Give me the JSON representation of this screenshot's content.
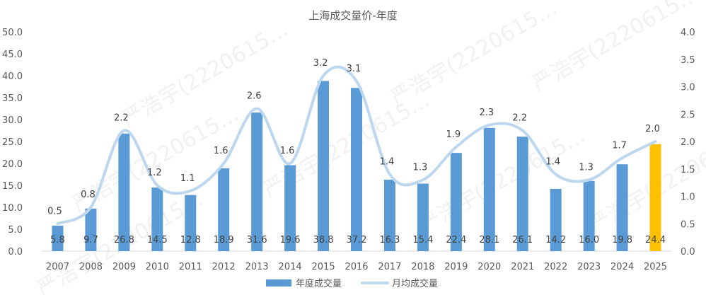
{
  "chart_data": {
    "type": "bar",
    "title": "上海成交量价-年度",
    "categories": [
      "2007",
      "2008",
      "2009",
      "2010",
      "2011",
      "2012",
      "2013",
      "2014",
      "2015",
      "2016",
      "2017",
      "2018",
      "2019",
      "2020",
      "2021",
      "2022",
      "2023",
      "2024",
      "2025"
    ],
    "series": [
      {
        "name": "年度成交量",
        "type": "bar",
        "axis": "left",
        "values": [
          5.8,
          9.7,
          26.8,
          14.5,
          12.8,
          18.9,
          31.6,
          19.6,
          38.8,
          37.2,
          16.3,
          15.4,
          22.4,
          28.1,
          26.1,
          14.2,
          16.0,
          19.8,
          24.4
        ],
        "color": "#5B9BD5",
        "highlight_color": "#FFC000",
        "highlight_index": 18
      },
      {
        "name": "月均成交量",
        "type": "line",
        "axis": "right",
        "values": [
          0.5,
          0.8,
          2.2,
          1.2,
          1.1,
          1.6,
          2.6,
          1.6,
          3.2,
          3.1,
          1.4,
          1.3,
          1.9,
          2.3,
          2.2,
          1.4,
          1.3,
          1.7,
          2.0
        ],
        "color": "#BDD7EE"
      }
    ],
    "y_left": {
      "min": 0,
      "max": 50,
      "step": 5,
      "tick_labels": [
        "0.0",
        "5.0",
        "10.0",
        "15.0",
        "20.0",
        "25.0",
        "30.0",
        "35.0",
        "40.0",
        "45.0",
        "50.0"
      ]
    },
    "y_right": {
      "min": 0,
      "max": 4,
      "step": 0.5,
      "tick_labels": [
        "0.0",
        "0.5",
        "1.0",
        "1.5",
        "2.0",
        "2.5",
        "3.0",
        "3.5",
        "4.0"
      ]
    },
    "grid": false,
    "legend_position": "bottom",
    "watermark": "严浩宇(2220615…"
  }
}
